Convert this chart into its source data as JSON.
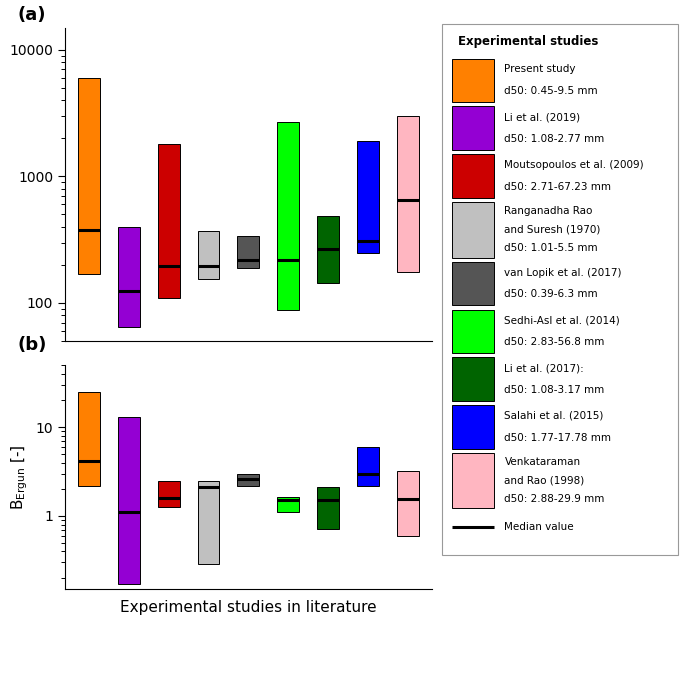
{
  "studies": [
    {
      "color": "#FF8000",
      "A_low": 170,
      "A_high": 6000,
      "A_median": 380,
      "B_low": 2.2,
      "B_high": 25,
      "B_median": 4.2,
      "x": 1
    },
    {
      "color": "#9400D3",
      "A_low": 65,
      "A_high": 400,
      "A_median": 125,
      "B_low": 0.17,
      "B_high": 13,
      "B_median": 1.1,
      "x": 2
    },
    {
      "color": "#CC0000",
      "A_low": 110,
      "A_high": 1800,
      "A_median": 195,
      "B_low": 1.25,
      "B_high": 2.5,
      "B_median": 1.6,
      "x": 3
    },
    {
      "color": "#C0C0C0",
      "A_low": 155,
      "A_high": 370,
      "A_median": 195,
      "B_low": 0.29,
      "B_high": 2.5,
      "B_median": 2.1,
      "x": 4
    },
    {
      "color": "#555555",
      "A_low": 190,
      "A_high": 340,
      "A_median": 220,
      "B_low": 2.2,
      "B_high": 3.0,
      "B_median": 2.6,
      "x": 5
    },
    {
      "color": "#00FF00",
      "A_low": 88,
      "A_high": 2700,
      "A_median": 220,
      "B_low": 1.1,
      "B_high": 1.65,
      "B_median": 1.5,
      "x": 6
    },
    {
      "color": "#006400",
      "A_low": 145,
      "A_high": 490,
      "A_median": 265,
      "B_low": 0.72,
      "B_high": 2.1,
      "B_median": 1.5,
      "x": 7
    },
    {
      "color": "#0000FF",
      "A_low": 250,
      "A_high": 1900,
      "A_median": 310,
      "B_low": 2.2,
      "B_high": 6.0,
      "B_median": 3.0,
      "x": 8
    },
    {
      "color": "#FFB6C1",
      "A_low": 175,
      "A_high": 3000,
      "A_median": 650,
      "B_low": 0.6,
      "B_high": 3.2,
      "B_median": 1.55,
      "x": 9
    }
  ],
  "legend_title": "Experimental studies",
  "legend_items": [
    {
      "label": "Present study\nd50: 0.45-9.5 mm",
      "color": "#FF8000",
      "type": "box"
    },
    {
      "label": "Li et al. (2019)\nd50: 1.08-2.77 mm",
      "color": "#9400D3",
      "type": "box"
    },
    {
      "label": "Moutsopoulos et al. (2009)\nd50: 2.71-67.23 mm",
      "color": "#CC0000",
      "type": "box"
    },
    {
      "label": "Ranganadha Rao\nand Suresh (1970)\nd50: 1.01-5.5 mm",
      "color": "#C0C0C0",
      "type": "box"
    },
    {
      "label": "van Lopik et al. (2017)\nd50: 0.39-6.3 mm",
      "color": "#555555",
      "type": "box"
    },
    {
      "label": "Sedhi-Asl et al. (2014)\nd50: 2.83-56.8 mm",
      "color": "#00FF00",
      "type": "box"
    },
    {
      "label": "Li et al. (2017):\nd50: 1.08-3.17 mm",
      "color": "#006400",
      "type": "box"
    },
    {
      "label": "Salahi et al. (2015)\nd50: 1.77-17.78 mm",
      "color": "#0000FF",
      "type": "box"
    },
    {
      "label": "Venkataraman\nand Rao (1998)\nd50: 2.88-29.9 mm",
      "color": "#FFB6C1",
      "type": "box"
    },
    {
      "label": "Median value",
      "color": "#000000",
      "type": "line"
    }
  ],
  "xlabel": "Experimental studies in literature",
  "A_ylim": [
    50,
    15000
  ],
  "B_ylim": [
    0.15,
    50
  ],
  "A_yticks": [
    100,
    1000,
    10000
  ],
  "B_yticks": [
    1,
    10
  ],
  "bar_width": 0.55
}
